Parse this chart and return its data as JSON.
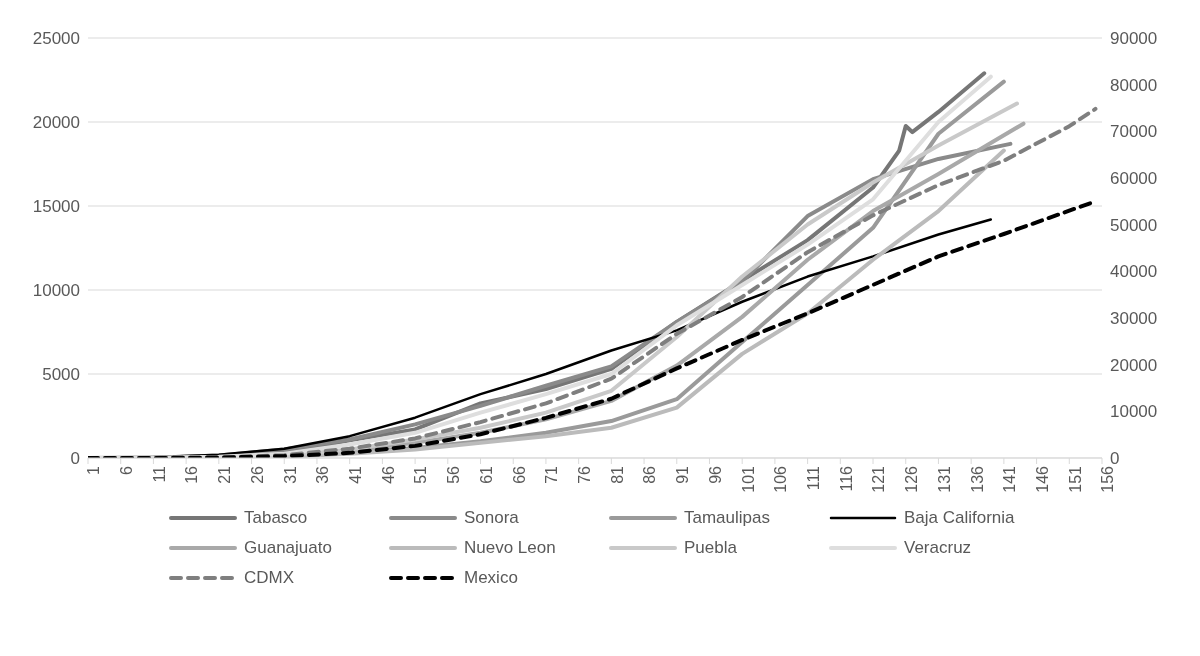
{
  "chart_data": {
    "type": "line",
    "xlim": [
      1,
      156
    ],
    "xticks": [
      1,
      6,
      11,
      16,
      21,
      26,
      31,
      36,
      41,
      46,
      51,
      56,
      61,
      66,
      71,
      76,
      81,
      86,
      91,
      96,
      101,
      106,
      111,
      116,
      121,
      126,
      131,
      136,
      141,
      146,
      151,
      156
    ],
    "ylim": [
      0,
      25000
    ],
    "yticks": [
      0,
      5000,
      10000,
      15000,
      20000,
      25000
    ],
    "y2lim": [
      0,
      90000
    ],
    "y2ticks": [
      0,
      10000,
      20000,
      30000,
      40000,
      50000,
      60000,
      70000,
      80000,
      90000
    ],
    "grid": "y",
    "legend": "bottom",
    "marker": "none",
    "series": [
      {
        "name": "Tabasco",
        "color": "#767676",
        "x": [
          1,
          11,
          21,
          31,
          41,
          51,
          61,
          71,
          81,
          91,
          101,
          111,
          121,
          125,
          126,
          127,
          131,
          138
        ],
        "values": [
          0,
          30,
          120,
          300,
          1050,
          1700,
          3250,
          4100,
          5300,
          8100,
          10550,
          12970,
          16100,
          18300,
          19760,
          19400,
          20600,
          22900
        ]
      },
      {
        "name": "Sonora",
        "color": "#8a8a8a",
        "x": [
          1,
          11,
          21,
          31,
          41,
          51,
          61,
          71,
          81,
          91,
          101,
          111,
          121,
          131,
          142
        ],
        "values": [
          0,
          20,
          150,
          500,
          1100,
          2000,
          3100,
          4300,
          5450,
          8100,
          10500,
          14400,
          16600,
          17800,
          18700
        ]
      },
      {
        "name": "Tamaulipas",
        "color": "#9a9a9a",
        "x": [
          1,
          11,
          21,
          31,
          41,
          51,
          61,
          71,
          81,
          91,
          101,
          111,
          121,
          131,
          141
        ],
        "values": [
          0,
          0,
          30,
          100,
          300,
          600,
          1000,
          1500,
          2200,
          3500,
          6900,
          10300,
          13700,
          19300,
          22400
        ]
      },
      {
        "name": "Baja California",
        "color": "#000000",
        "x": [
          1,
          11,
          21,
          31,
          41,
          51,
          61,
          71,
          81,
          91,
          101,
          111,
          121,
          131,
          139
        ],
        "values": [
          0,
          50,
          200,
          550,
          1300,
          2400,
          3800,
          5000,
          6400,
          7600,
          9300,
          10800,
          12000,
          13300,
          14200
        ]
      },
      {
        "name": "Guanajuato",
        "color": "#a9a9a9",
        "x": [
          1,
          11,
          21,
          31,
          41,
          51,
          61,
          71,
          81,
          91,
          101,
          111,
          121,
          131,
          144
        ],
        "values": [
          0,
          0,
          50,
          150,
          450,
          900,
          1500,
          2300,
          3400,
          5500,
          8400,
          11800,
          14700,
          16900,
          19900
        ]
      },
      {
        "name": "Nuevo Leon",
        "color": "#bbbbbb",
        "x": [
          1,
          11,
          21,
          31,
          41,
          51,
          61,
          71,
          81,
          91,
          101,
          111,
          121,
          131,
          141
        ],
        "values": [
          0,
          0,
          20,
          80,
          250,
          500,
          900,
          1300,
          1800,
          3000,
          6200,
          8600,
          11800,
          14700,
          18300
        ]
      },
      {
        "name": "Puebla",
        "color": "#c9c9c9",
        "x": [
          1,
          11,
          21,
          31,
          41,
          51,
          61,
          71,
          81,
          91,
          101,
          111,
          121,
          131,
          143
        ],
        "values": [
          0,
          0,
          50,
          150,
          500,
          1100,
          1800,
          2700,
          4000,
          7200,
          10800,
          13900,
          16400,
          18600,
          21100
        ]
      },
      {
        "name": "Veracruz",
        "color": "#dedede",
        "x": [
          1,
          11,
          21,
          31,
          41,
          51,
          61,
          71,
          81,
          91,
          101,
          111,
          121,
          131,
          139
        ],
        "values": [
          0,
          20,
          80,
          250,
          800,
          1500,
          2700,
          3800,
          5000,
          7900,
          10300,
          12700,
          15400,
          20000,
          22700
        ]
      },
      {
        "name": "CDMX",
        "color": "#7f7f7f",
        "axis": "y2",
        "line_style": "dashed",
        "x": [
          1,
          11,
          21,
          31,
          41,
          51,
          61,
          71,
          81,
          91,
          101,
          111,
          121,
          131,
          141,
          151,
          155
        ],
        "values": [
          0,
          0,
          100,
          600,
          2000,
          4200,
          7700,
          11700,
          17000,
          26600,
          34500,
          44100,
          52000,
          58500,
          63700,
          71100,
          74800
        ]
      },
      {
        "name": "Mexico",
        "color": "#000000",
        "axis": "y2",
        "line_style": "dashed",
        "x": [
          1,
          11,
          21,
          31,
          41,
          51,
          61,
          71,
          81,
          91,
          101,
          111,
          121,
          131,
          141,
          151,
          155
        ],
        "values": [
          0,
          0,
          100,
          400,
          1100,
          2600,
          5100,
          8600,
          12700,
          19200,
          25300,
          31000,
          37100,
          43200,
          48000,
          53000,
          55000
        ]
      }
    ]
  }
}
